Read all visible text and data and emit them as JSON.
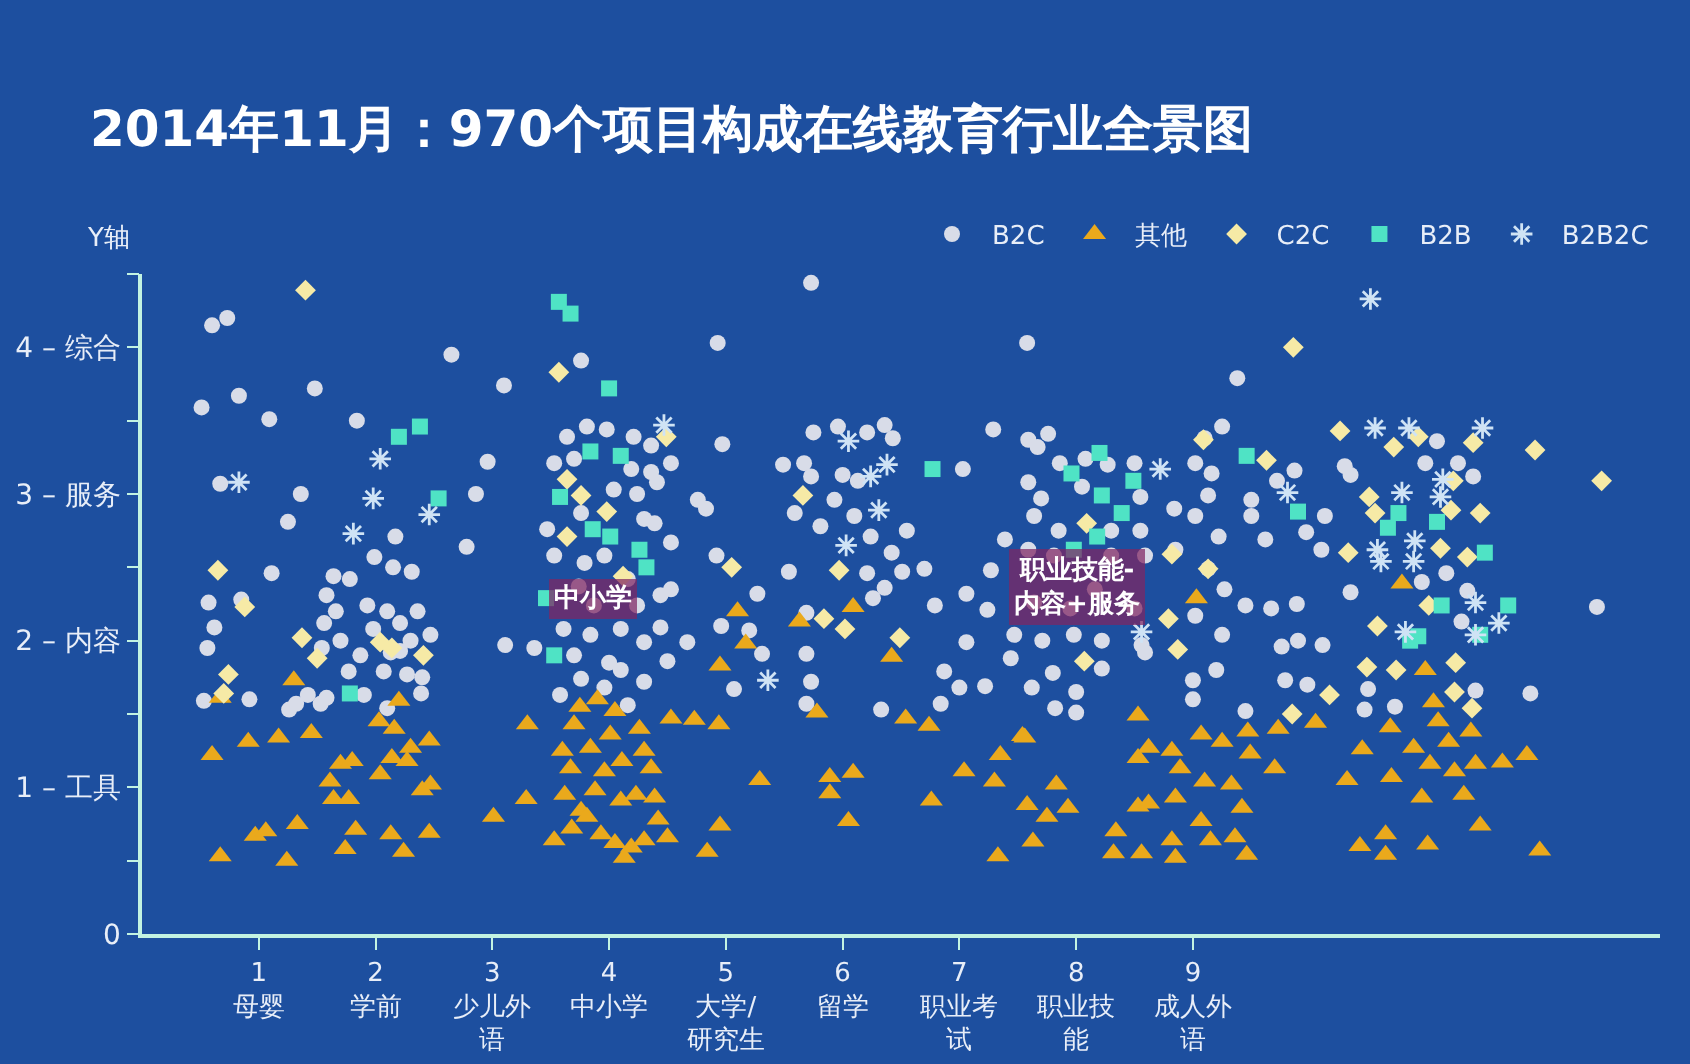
{
  "chart_data": {
    "type": "scatter",
    "title": "2014年11月：970个项目构成在线教育行业全景图",
    "ylabel": "Y轴",
    "xlim": [
      0,
      13
    ],
    "ylim": [
      0,
      4.5
    ],
    "xticks": [
      {
        "value": 1,
        "label": "1\n母婴"
      },
      {
        "value": 2,
        "label": "2\n学前"
      },
      {
        "value": 3,
        "label": "3\n少儿外语"
      },
      {
        "value": 4,
        "label": "4\n中小学"
      },
      {
        "value": 5,
        "label": "5\n大学/研究生"
      },
      {
        "value": 6,
        "label": "6\n留学"
      },
      {
        "value": 7,
        "label": "7\n职业考试"
      },
      {
        "value": 8,
        "label": "8\n职业技能"
      },
      {
        "value": 9,
        "label": "9\n成人外语"
      }
    ],
    "yticks": [
      0,
      {
        "value": 0.5,
        "label": null
      },
      {
        "value": 1,
        "label": "1 – 工具"
      },
      {
        "value": 1.5,
        "label": null
      },
      {
        "value": 2,
        "label": "2 – 内容"
      },
      {
        "value": 2.5,
        "label": null
      },
      {
        "value": 3,
        "label": "3 – 服务"
      },
      {
        "value": 3.5,
        "label": null
      },
      {
        "value": 4,
        "label": "4 – 综合"
      },
      {
        "value": 4.5,
        "label": null
      }
    ],
    "legend": "top right",
    "annotations": [
      {
        "text": "中小学",
        "x": 3.86,
        "y": 2.28
      },
      {
        "text": "职业技能-\n内容+服务",
        "x": 8.01,
        "y": 2.36
      }
    ],
    "series": [
      {
        "name": "B2C",
        "color": "#d8dce8",
        "marker": "circle",
        "x": [
          0.6,
          0.73,
          0.51,
          0.83,
          1.09,
          1.48,
          0.67,
          1.36,
          1.25,
          1.11,
          0.57,
          0.62,
          0.85,
          0.56,
          0.53,
          0.92,
          1.26,
          1.32,
          1.84,
          2.65,
          3.1,
          2.96,
          2.86,
          2.78,
          2.17,
          1.99,
          2.15,
          2.31,
          1.58,
          1.77,
          2.39,
          1.64,
          1.78,
          1.58,
          1.66,
          1.93,
          2.1,
          1.98,
          2.21,
          2.36,
          2.47,
          2.3,
          2.13,
          1.87,
          1.7,
          1.56,
          1.54,
          1.9,
          2.07,
          2.27,
          2.4,
          2.1,
          1.42,
          1.53,
          2.21,
          3.11,
          3.76,
          3.64,
          3.81,
          3.98,
          4.21,
          4.36,
          3.53,
          3.7,
          4.19,
          4.36,
          4.04,
          4.24,
          3.47,
          3.76,
          4.3,
          3.53,
          3.79,
          3.96,
          4.16,
          3.74,
          3.87,
          4.24,
          3.61,
          3.84,
          4.1,
          4.3,
          3.7,
          4.0,
          3.36,
          3.58,
          3.76,
          3.96,
          4.1,
          4.3,
          4.16,
          4.53,
          4.41,
          4.39,
          4.44,
          4.53,
          4.67,
          4.5,
          4.44,
          4.53,
          5.73,
          4.93,
          7.58,
          4.97,
          5.49,
          5.75,
          5.96,
          6.21,
          6.36,
          6.43,
          5.67,
          5.73,
          6.0,
          6.13,
          4.76,
          4.83,
          5.59,
          5.81,
          5.93,
          6.1,
          6.24,
          6.42,
          6.55,
          7.03,
          7.29,
          7.59,
          4.92,
          5.54,
          6.21,
          6.51,
          6.7,
          6.36,
          6.79,
          7.06,
          7.24,
          7.27,
          5.27,
          4.96,
          5.2,
          5.69,
          6.26,
          7.06,
          7.39,
          5.07,
          5.31,
          5.69,
          5.73,
          5.69,
          6.33,
          6.87,
          7.0,
          6.84,
          7.22,
          7.76,
          7.67,
          7.86,
          8.08,
          8.27,
          8.5,
          7.59,
          7.7,
          8.05,
          8.55,
          7.64,
          7.85,
          8.3,
          8.55,
          7.59,
          7.81,
          8.3,
          8.59,
          7.64,
          7.95,
          8.16,
          8.5,
          7.47,
          7.71,
          7.98,
          8.22,
          8.56,
          7.44,
          7.62,
          7.8,
          8.0,
          8.22,
          7.82,
          8.0,
          8.84,
          8.85,
          8.59,
          9.38,
          9.25,
          9.1,
          9.02,
          9.16,
          9.13,
          9.02,
          9.22,
          9.13,
          9.27,
          9.02,
          9.25,
          9.5,
          9.5,
          9.72,
          9.87,
          9.62,
          10.13,
          9.97,
          10.1,
          10.3,
          10.35,
          9.45,
          9.67,
          9.89,
          9.76,
          9.9,
          10.11,
          10.35,
          10.99,
          11.09,
          11.27,
          11.4,
          10.96,
          11.17,
          11.35,
          11.3,
          12.46,
          9.79,
          9.98,
          10.47,
          10.5,
          10.73,
          11.42,
          11.89,
          9.45,
          9.0,
          9.2,
          9.0
        ],
        "values": [
          4.15,
          4.2,
          3.59,
          3.67,
          3.51,
          3.72,
          3.07,
          3.0,
          2.81,
          2.46,
          2.26,
          2.09,
          2.28,
          1.95,
          1.59,
          1.6,
          1.53,
          1.57,
          3.5,
          3.95,
          3.74,
          3.22,
          3.0,
          2.64,
          2.71,
          2.57,
          2.5,
          2.47,
          1.61,
          1.79,
          1.64,
          2.44,
          2.42,
          2.31,
          2.2,
          2.24,
          2.2,
          2.08,
          2.12,
          2.2,
          2.04,
          2.0,
          1.92,
          1.9,
          2.0,
          2.12,
          1.95,
          1.63,
          1.79,
          1.77,
          1.75,
          1.54,
          1.63,
          1.57,
          1.93,
          1.97,
          3.91,
          3.39,
          3.46,
          3.44,
          3.39,
          3.33,
          3.21,
          3.24,
          3.17,
          3.15,
          3.03,
          3.0,
          2.76,
          2.87,
          2.83,
          2.58,
          2.53,
          2.58,
          2.42,
          2.37,
          2.24,
          2.24,
          2.08,
          2.04,
          2.08,
          1.99,
          1.9,
          1.85,
          1.95,
          1.63,
          1.74,
          1.68,
          1.8,
          1.72,
          1.56,
          3.21,
          3.08,
          2.8,
          2.31,
          2.35,
          1.99,
          1.86,
          2.09,
          2.67,
          4.44,
          4.03,
          4.03,
          3.34,
          3.2,
          3.42,
          3.46,
          3.42,
          3.47,
          3.38,
          3.21,
          3.12,
          3.13,
          3.09,
          2.96,
          2.9,
          2.87,
          2.78,
          2.96,
          2.85,
          2.71,
          2.6,
          2.75,
          3.17,
          3.44,
          3.37,
          2.58,
          2.47,
          2.46,
          2.47,
          2.49,
          2.36,
          2.24,
          2.32,
          2.21,
          2.48,
          2.32,
          2.1,
          2.07,
          2.19,
          2.29,
          1.99,
          2.69,
          1.67,
          1.91,
          1.91,
          1.72,
          1.57,
          1.53,
          1.79,
          1.68,
          1.57,
          1.69,
          3.41,
          3.32,
          3.21,
          3.24,
          3.2,
          3.21,
          3.08,
          2.97,
          3.05,
          2.98,
          2.85,
          2.75,
          2.75,
          2.75,
          2.62,
          2.58,
          2.58,
          2.58,
          2.26,
          2.22,
          2.35,
          2.22,
          2.04,
          2.0,
          2.04,
          2.0,
          1.97,
          1.88,
          1.68,
          1.78,
          1.65,
          1.81,
          1.54,
          1.51,
          2.9,
          2.62,
          1.92,
          3.79,
          3.46,
          3.38,
          3.21,
          3.14,
          2.99,
          2.85,
          2.71,
          2.49,
          2.35,
          2.17,
          2.04,
          2.96,
          2.85,
          3.09,
          3.16,
          2.69,
          2.85,
          2.74,
          2.62,
          3.19,
          3.13,
          2.24,
          2.22,
          2.25,
          1.96,
          2.0,
          1.97,
          2.33,
          3.21,
          3.36,
          3.21,
          3.12,
          2.4,
          2.46,
          2.34,
          2.13,
          2.23,
          1.73,
          1.7,
          1.53,
          1.67,
          1.55,
          1.66,
          1.64,
          1.52,
          1.73,
          1.8,
          1.6
        ]
      },
      {
        "name": "其他",
        "color": "#eaa91c",
        "marker": "triangle",
        "x": [
          0.6,
          0.67,
          0.91,
          0.97,
          1.06,
          1.17,
          1.24,
          1.33,
          1.3,
          1.45,
          0.67,
          1.61,
          1.64,
          1.7,
          1.8,
          1.77,
          1.83,
          1.74,
          2.03,
          2.16,
          2.3,
          2.27,
          2.14,
          2.04,
          2.4,
          2.47,
          2.46,
          2.46,
          2.13,
          2.24,
          2.2,
          3.01,
          3.29,
          3.3,
          3.53,
          3.76,
          3.62,
          3.67,
          3.6,
          3.7,
          3.84,
          4.01,
          3.96,
          4.11,
          4.26,
          4.3,
          4.36,
          4.1,
          4.23,
          3.81,
          3.93,
          4.05,
          4.19,
          4.13,
          4.3,
          4.42,
          4.39,
          4.5,
          3.75,
          3.9,
          4.05,
          3.88,
          3.68,
          4.95,
          4.53,
          4.73,
          4.94,
          5.78,
          6.42,
          6.54,
          6.74,
          5.29,
          5.89,
          6.09,
          5.89,
          6.05,
          4.95,
          4.84,
          6.76,
          7.04,
          7.3,
          7.35,
          7.56,
          7.58,
          7.75,
          7.83,
          7.93,
          7.63,
          7.33,
          8.34,
          8.32,
          8.53,
          8.56,
          8.53,
          8.53,
          8.82,
          8.82,
          8.85,
          9.07,
          9.1,
          9.07,
          9.15,
          7.54,
          8.62,
          8.89,
          8.62,
          8.85,
          5.1,
          5.17,
          5.63,
          6.09,
          9.03,
          10.79,
          10.99,
          9.25,
          9.47,
          9.49,
          9.73,
          10.05,
          9.7,
          9.33,
          9.42,
          9.36,
          9.46,
          10.32,
          10.45,
          10.69,
          10.7,
          10.89,
          11.06,
          11.1,
          11.19,
          11.38,
          11.03,
          11.24,
          11.42,
          11.65,
          11.86,
          10.96,
          11.32,
          11.46,
          10.43,
          10.65,
          10.65,
          11.01,
          11.97
        ],
        "values": [
          1.22,
          0.53,
          1.31,
          0.67,
          0.7,
          1.34,
          0.5,
          0.75,
          1.73,
          1.37,
          1.61,
          1.04,
          0.92,
          1.16,
          1.18,
          0.92,
          0.71,
          0.58,
          1.45,
          1.4,
          1.27,
          1.18,
          1.2,
          1.09,
          0.98,
          1.02,
          1.32,
          0.69,
          0.68,
          0.56,
          1.59,
          0.8,
          0.92,
          1.43,
          0.64,
          0.84,
          0.95,
          1.13,
          1.25,
          1.43,
          1.27,
          1.36,
          1.11,
          1.18,
          1.4,
          1.25,
          1.13,
          0.91,
          0.95,
          0.8,
          0.68,
          0.62,
          0.59,
          0.52,
          0.64,
          0.78,
          0.93,
          0.66,
          1.55,
          1.6,
          1.52,
          0.98,
          0.72,
          1.83,
          1.47,
          1.46,
          1.43,
          1.51,
          1.89,
          1.47,
          1.42,
          1.05,
          1.07,
          1.1,
          0.96,
          0.77,
          0.74,
          0.56,
          0.91,
          1.11,
          1.04,
          1.22,
          1.34,
          0.88,
          0.8,
          1.02,
          0.86,
          0.63,
          0.53,
          0.7,
          0.55,
          0.87,
          0.55,
          1.2,
          1.49,
          1.25,
          0.64,
          0.93,
          1.36,
          1.04,
          0.77,
          0.64,
          1.35,
          1.27,
          1.13,
          0.89,
          0.52,
          2.2,
          1.98,
          2.13,
          2.23,
          2.29,
          2.39,
          1.8,
          1.31,
          1.38,
          1.23,
          1.4,
          1.44,
          1.13,
          1.02,
          0.86,
          0.66,
          0.54,
          1.05,
          1.26,
          1.41,
          1.07,
          1.27,
          1.58,
          1.45,
          1.31,
          1.38,
          1.16,
          1.11,
          1.16,
          1.17,
          1.22,
          0.93,
          0.95,
          0.74,
          0.6,
          0.68,
          0.54,
          0.61,
          0.57
        ]
      },
      {
        "name": "C2C",
        "color": "#f6eaa6",
        "marker": "diamond",
        "x": [
          1.4,
          3.57,
          0.65,
          0.88,
          1.37,
          1.5,
          2.41,
          0.74,
          0.7,
          2.04,
          2.14,
          3.64,
          3.76,
          3.98,
          3.64,
          4.12,
          5.05,
          5.97,
          5.66,
          5.84,
          6.02,
          6.49,
          4.49,
          8.82,
          8.79,
          8.87,
          9.13,
          8.09,
          8.07,
          9.86,
          10.26,
          10.72,
          10.93,
          11.4,
          11.93,
          12.5,
          9.63,
          10.51,
          10.56,
          11.23,
          11.21,
          11.46,
          10.33,
          11.12,
          11.35,
          11.02,
          10.58,
          9.09,
          10.49,
          10.74,
          10.17,
          9.85,
          11.39,
          11.24,
          11.25
        ],
        "values": [
          4.39,
          3.83,
          2.48,
          2.23,
          2.02,
          1.88,
          1.9,
          1.77,
          1.64,
          1.99,
          1.95,
          3.1,
          2.99,
          2.88,
          2.71,
          2.44,
          2.5,
          2.48,
          2.99,
          2.15,
          2.08,
          2.02,
          3.39,
          2.59,
          2.15,
          1.94,
          2.49,
          2.8,
          1.86,
          4.0,
          3.43,
          3.32,
          3.39,
          3.35,
          3.3,
          3.09,
          3.23,
          2.98,
          2.87,
          3.09,
          2.89,
          2.87,
          2.6,
          2.63,
          2.57,
          2.24,
          2.1,
          3.37,
          1.82,
          1.8,
          1.63,
          1.5,
          1.54,
          1.65,
          1.85
        ]
      },
      {
        "name": "B2B",
        "color": "#4fe3c5",
        "marker": "square",
        "x": [
          3.57,
          3.67,
          2.2,
          2.38,
          2.54,
          1.78,
          4.0,
          3.84,
          4.1,
          3.58,
          3.86,
          4.01,
          4.26,
          4.32,
          3.46,
          3.53,
          6.77,
          8.2,
          7.96,
          8.49,
          8.22,
          8.39,
          8.18,
          7.98,
          9.46,
          9.9,
          10.67,
          10.76,
          11.09,
          11.5,
          11.13,
          11.7,
          10.93,
          11.46,
          10.86
        ],
        "values": [
          4.31,
          4.23,
          3.39,
          3.46,
          2.97,
          1.64,
          3.72,
          3.29,
          3.26,
          2.98,
          2.76,
          2.71,
          2.62,
          2.5,
          2.29,
          1.9,
          3.17,
          3.28,
          3.14,
          3.09,
          2.99,
          2.87,
          2.71,
          2.62,
          3.26,
          2.88,
          2.77,
          2.87,
          2.81,
          2.6,
          2.24,
          2.24,
          2.03,
          2.04,
          2.0
        ]
      },
      {
        "name": "B2B2C",
        "color": "#cfe3f5",
        "marker": "cross",
        "x": [
          0.83,
          2.04,
          1.98,
          1.81,
          2.46,
          4.47,
          6.05,
          6.38,
          6.24,
          6.31,
          6.03,
          8.72,
          8.56,
          5.36,
          10.52,
          10.56,
          10.85,
          11.48,
          9.81,
          10.79,
          11.14,
          11.12,
          10.58,
          10.61,
          10.9,
          10.89,
          11.42,
          11.62,
          10.82,
          11.42
        ],
        "values": [
          3.08,
          3.24,
          2.97,
          2.73,
          2.86,
          3.47,
          3.36,
          3.2,
          3.12,
          2.89,
          2.65,
          3.17,
          2.06,
          1.73,
          4.33,
          3.45,
          3.45,
          3.45,
          3.01,
          3.01,
          3.1,
          2.98,
          2.62,
          2.54,
          2.68,
          2.54,
          2.26,
          2.12,
          2.06,
          2.04
        ]
      }
    ]
  }
}
